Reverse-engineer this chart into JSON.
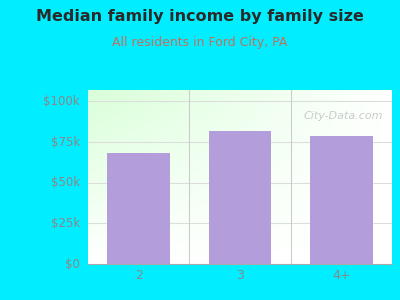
{
  "title": "Median family income by family size",
  "subtitle": "All residents in Ford City, PA",
  "categories": [
    "2",
    "3",
    "4+"
  ],
  "values": [
    68000,
    82000,
    79000
  ],
  "bar_color": "#b39ddb",
  "title_color": "#2a2a2a",
  "subtitle_color": "#c07060",
  "background_color": "#00eeff",
  "plot_bg_color_topleft": "#e8f5e9",
  "plot_bg_color_topright": "#f8ffff",
  "plot_bg_color_bottomleft": "#d4eedd",
  "plot_bg_color_bottomright": "#ffffff",
  "yticks": [
    0,
    25000,
    50000,
    75000,
    100000
  ],
  "ytick_labels": [
    "$0",
    "$25k",
    "$50k",
    "$75k",
    "$100k"
  ],
  "ylim": [
    0,
    107000
  ],
  "tick_color": "#888888",
  "watermark": "City-Data.com",
  "separator_color": "#cccccc",
  "grid_color": "#dddddd"
}
